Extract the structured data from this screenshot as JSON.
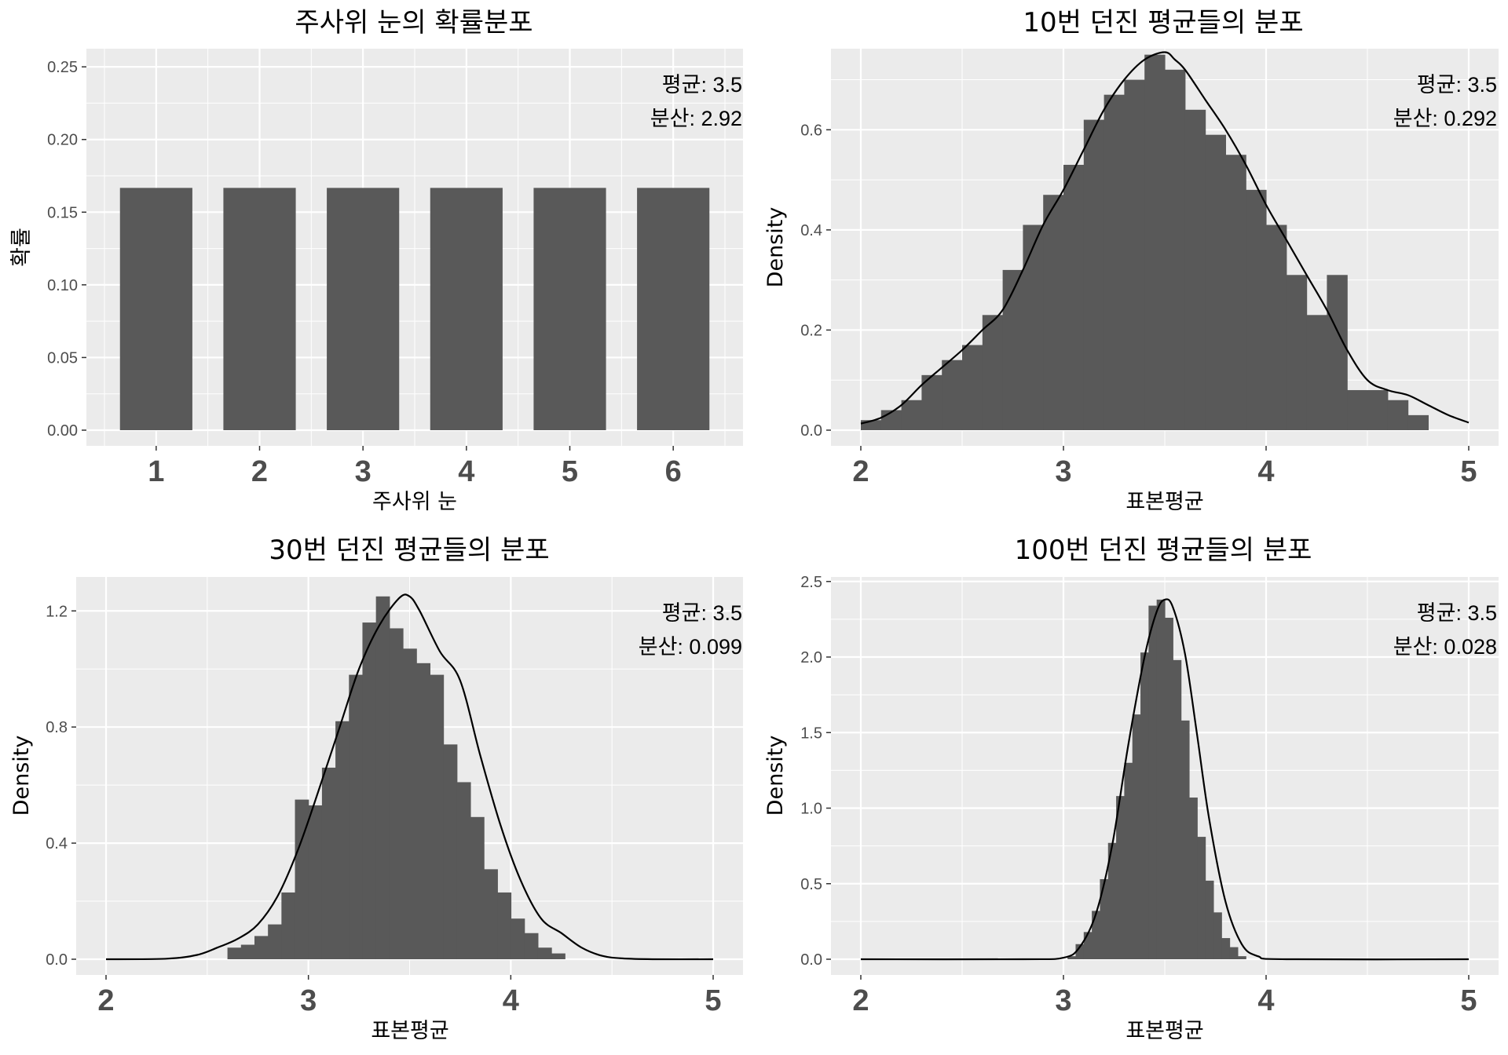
{
  "colors": {
    "panel_bg": "#ebebeb",
    "grid_major": "#ffffff",
    "bar_fill": "#595959",
    "density_line": "#000000",
    "tick_text": "#4d4d4d"
  },
  "chart_data": [
    {
      "type": "bar",
      "title": "주사위 눈의 확률분포",
      "xlabel": "주사위 눈",
      "ylabel": "확률",
      "categories": [
        "1",
        "2",
        "3",
        "4",
        "5",
        "6"
      ],
      "values": [
        0.1667,
        0.1667,
        0.1667,
        0.1667,
        0.1667,
        0.1667
      ],
      "ylim": [
        0,
        0.25
      ],
      "yticks": [
        "0.00",
        "0.05",
        "0.10",
        "0.15",
        "0.20",
        "0.25"
      ],
      "grid": true,
      "annotations": [
        "평균: 3.5",
        "분산: 2.92"
      ],
      "annotation_position": "top-right"
    },
    {
      "type": "histogram",
      "title": "10번 던진 평균들의 분포",
      "xlabel": "표본평균",
      "ylabel": "Density",
      "xlim": [
        2,
        5
      ],
      "ylim": [
        0,
        0.75
      ],
      "xticks": [
        "2",
        "3",
        "4",
        "5"
      ],
      "yticks": [
        "0.0",
        "0.2",
        "0.4",
        "0.6"
      ],
      "bins": {
        "start": 2.0,
        "width": 0.1,
        "values": [
          0.02,
          0.04,
          0.06,
          0.11,
          0.14,
          0.17,
          0.23,
          0.32,
          0.41,
          0.47,
          0.53,
          0.62,
          0.67,
          0.7,
          0.75,
          0.72,
          0.64,
          0.59,
          0.55,
          0.48,
          0.41,
          0.31,
          0.23,
          0.31,
          0.08,
          0.08,
          0.06,
          0.03
        ]
      },
      "density": {
        "x": [
          2.0,
          2.1,
          2.2,
          2.3,
          2.4,
          2.5,
          2.6,
          2.7,
          2.8,
          2.9,
          3.0,
          3.1,
          3.2,
          3.3,
          3.4,
          3.5,
          3.55,
          3.6,
          3.7,
          3.8,
          3.9,
          4.0,
          4.1,
          4.2,
          4.3,
          4.4,
          4.5,
          4.6,
          4.7,
          4.8,
          4.9,
          5.0
        ],
        "y": [
          0.013,
          0.025,
          0.05,
          0.09,
          0.125,
          0.16,
          0.2,
          0.24,
          0.32,
          0.41,
          0.48,
          0.56,
          0.64,
          0.7,
          0.74,
          0.755,
          0.74,
          0.72,
          0.66,
          0.6,
          0.53,
          0.45,
          0.38,
          0.31,
          0.24,
          0.16,
          0.1,
          0.08,
          0.07,
          0.05,
          0.03,
          0.015
        ]
      },
      "grid": true,
      "annotations": [
        "평균: 3.5",
        "분산: 0.292"
      ],
      "annotation_position": "top-right"
    },
    {
      "type": "histogram",
      "title": "30번 던진 평균들의 분포",
      "xlabel": "표본평균",
      "ylabel": "Density",
      "xlim": [
        2,
        5
      ],
      "ylim": [
        0,
        1.26
      ],
      "xticks": [
        "2",
        "3",
        "4",
        "5"
      ],
      "yticks": [
        "0.0",
        "0.4",
        "0.8",
        "1.2"
      ],
      "bins": {
        "start": 2.6,
        "width": 0.0667,
        "values": [
          0.04,
          0.05,
          0.08,
          0.12,
          0.23,
          0.55,
          0.53,
          0.66,
          0.82,
          0.98,
          1.16,
          1.25,
          1.14,
          1.07,
          1.02,
          0.98,
          0.74,
          0.61,
          0.49,
          0.31,
          0.23,
          0.14,
          0.09,
          0.04,
          0.02
        ]
      },
      "density": {
        "x": [
          2.0,
          2.3,
          2.45,
          2.55,
          2.65,
          2.75,
          2.85,
          2.95,
          3.05,
          3.15,
          3.25,
          3.35,
          3.45,
          3.5,
          3.55,
          3.65,
          3.75,
          3.85,
          3.95,
          4.05,
          4.15,
          4.25,
          4.35,
          4.45,
          4.55,
          4.7,
          5.0
        ],
        "y": [
          0.0,
          0.002,
          0.015,
          0.04,
          0.07,
          0.12,
          0.22,
          0.38,
          0.58,
          0.79,
          1.0,
          1.15,
          1.245,
          1.25,
          1.2,
          1.06,
          0.96,
          0.7,
          0.46,
          0.27,
          0.14,
          0.09,
          0.04,
          0.012,
          0.003,
          0.0,
          0.0
        ]
      },
      "grid": true,
      "annotations": [
        "평균: 3.5",
        "분산: 0.099"
      ],
      "annotation_position": "top-right"
    },
    {
      "type": "histogram",
      "title": "100번 던진 평균들의 분포",
      "xlabel": "표본평균",
      "ylabel": "Density",
      "xlim": [
        2,
        5
      ],
      "ylim": [
        0,
        2.5
      ],
      "xticks": [
        "2",
        "3",
        "4",
        "5"
      ],
      "yticks": [
        "0.0",
        "0.5",
        "1.0",
        "1.5",
        "2.0",
        "2.5"
      ],
      "bins": {
        "start": 3.02,
        "width": 0.04,
        "values": [
          0.02,
          0.1,
          0.18,
          0.32,
          0.53,
          0.77,
          1.08,
          1.3,
          1.62,
          2.03,
          2.34,
          2.38,
          2.26,
          1.98,
          1.58,
          1.07,
          0.81,
          0.52,
          0.31,
          0.14,
          0.08,
          0.02
        ]
      },
      "density": {
        "x": [
          2.0,
          2.8,
          3.0,
          3.08,
          3.16,
          3.24,
          3.32,
          3.4,
          3.46,
          3.5,
          3.54,
          3.6,
          3.66,
          3.72,
          3.8,
          3.88,
          3.96,
          4.1,
          5.0
        ],
        "y": [
          0.0,
          0.0,
          0.01,
          0.08,
          0.3,
          0.75,
          1.42,
          2.0,
          2.3,
          2.38,
          2.33,
          2.02,
          1.48,
          0.92,
          0.38,
          0.1,
          0.02,
          0.0,
          0.0
        ]
      },
      "grid": true,
      "annotations": [
        "평균: 3.5",
        "분산: 0.028"
      ],
      "annotation_position": "top-right"
    }
  ]
}
